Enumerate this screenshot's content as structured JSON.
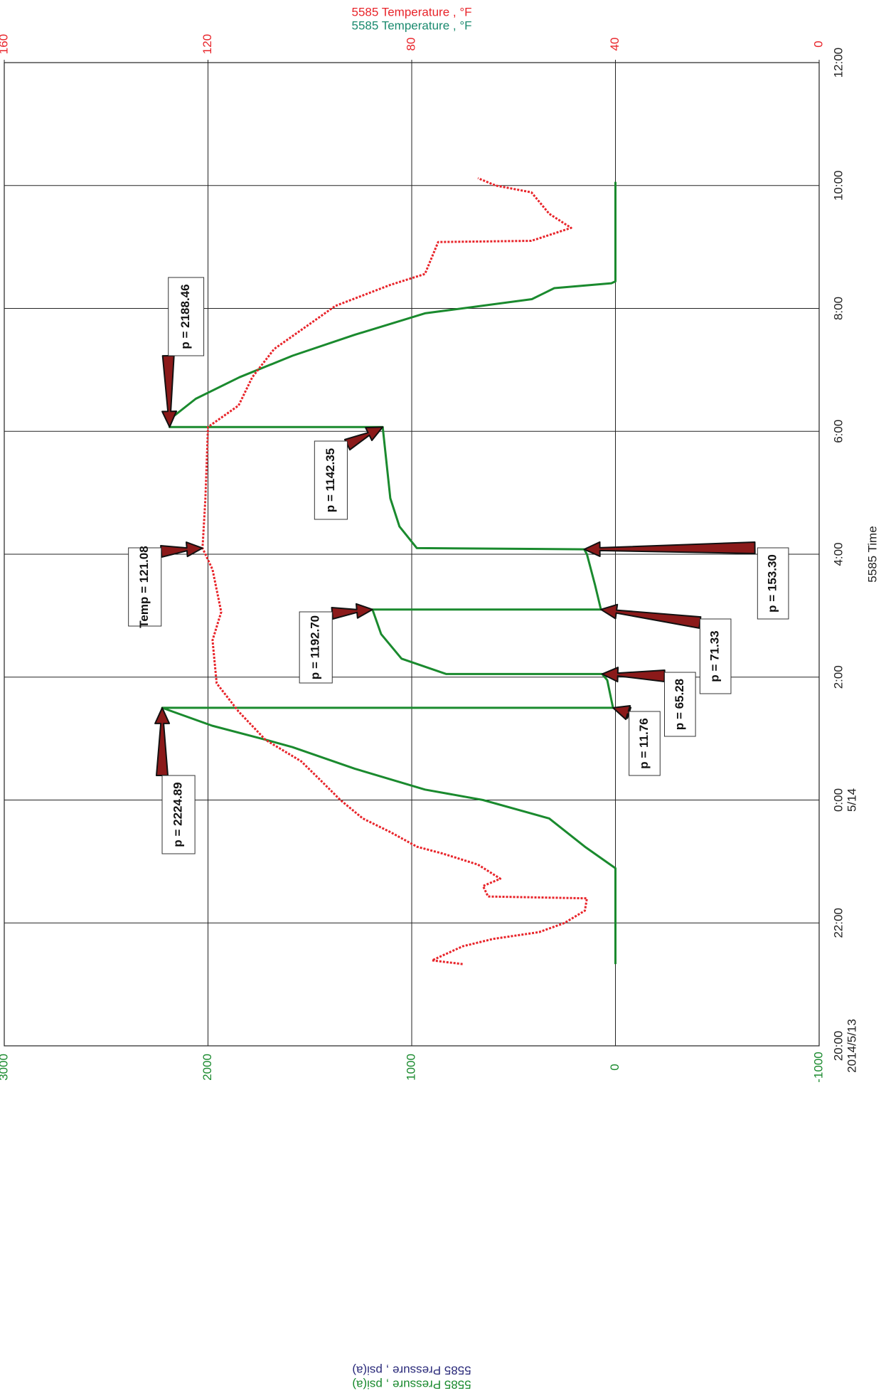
{
  "chart_data": {
    "type": "line",
    "title": "5585 Temperature , °F",
    "subtitle": "5585 Temperature , °F",
    "x_label": "5585 Time",
    "y_label": "5585 Pressure , psi(a)",
    "y_label_2": "5585 Pressure , psi(a)",
    "xlim": [
      0,
      16
    ],
    "xticks": [
      {
        "value": 0,
        "label": "20:00",
        "sublabel": "2014/5/13"
      },
      {
        "value": 2,
        "label": "22:00"
      },
      {
        "value": 4,
        "label": "0:00",
        "sublabel": "5/14"
      },
      {
        "value": 6,
        "label": "2:00"
      },
      {
        "value": 8,
        "label": "4:00"
      },
      {
        "value": 10,
        "label": "6:00"
      },
      {
        "value": 12,
        "label": "8:00"
      },
      {
        "value": 14,
        "label": "10:00"
      },
      {
        "value": 16,
        "label": "12:00"
      }
    ],
    "ylim": [
      -1000,
      3000
    ],
    "yticks": [
      -1000,
      0,
      1000,
      2000,
      3000
    ],
    "y2lim": [
      0,
      160
    ],
    "y2ticks": [
      0,
      40,
      80,
      120,
      160
    ],
    "grid": true,
    "series": [
      {
        "name": "5585 Pressure",
        "color": "#1a8a2e",
        "axis": "y",
        "x": [
          1.33,
          2.89,
          3.24,
          3.7,
          4.0,
          4.17,
          4.51,
          4.86,
          4.98,
          5.21,
          5.5,
          5.5,
          5.95,
          6.05,
          6.05,
          6.3,
          6.7,
          7.1,
          7.1,
          7.5,
          8.0,
          8.08,
          8.1,
          8.45,
          8.91,
          10.07,
          10.07,
          10.19,
          10.53,
          10.88,
          11.23,
          11.57,
          11.92,
          12.15,
          12.33,
          12.41,
          12.44,
          14.06
        ],
        "values": [
          0,
          0,
          150,
          325,
          650,
          935,
          1280,
          1585,
          1715,
          1980,
          2224.89,
          11.76,
          40,
          65.28,
          830,
          1050,
          1150,
          1192.7,
          71.33,
          100,
          140,
          153.3,
          975,
          1060,
          1105,
          1142.35,
          2188.46,
          2190,
          2060,
          1845,
          1585,
          1280,
          935,
          410,
          300,
          20,
          0,
          0
        ]
      },
      {
        "name": "5585 Temperature",
        "color": "#e8242a",
        "axis": "y2",
        "x": [
          1.33,
          1.39,
          1.62,
          1.74,
          1.85,
          2.0,
          2.2,
          2.4,
          2.43,
          2.6,
          2.72,
          2.95,
          3.13,
          3.24,
          3.47,
          3.7,
          4.0,
          4.28,
          4.63,
          4.98,
          5.44,
          5.9,
          6.6,
          7.06,
          7.75,
          8.1,
          8.91,
          10.07,
          10.42,
          10.88,
          11.34,
          11.69,
          12.04,
          12.38,
          12.56,
          13.08,
          13.1,
          13.31,
          13.54,
          13.89,
          14.0,
          14.12
        ],
        "values": [
          70,
          76,
          70,
          64,
          55,
          50,
          46,
          45.6,
          65,
          66,
          62.6,
          67,
          74,
          79,
          84,
          89.6,
          94,
          97.4,
          101.7,
          108.7,
          114,
          118.3,
          119.1,
          117.4,
          119.1,
          121.08,
          120.5,
          120,
          114,
          111.3,
          107,
          101,
          95,
          84.3,
          77.4,
          74.8,
          56.5,
          48.7,
          53,
          56.5,
          63.5,
          67
        ]
      }
    ],
    "annotations": [
      {
        "text": "p = 2188.46",
        "x": 10.07,
        "y": 2188.46,
        "axis": "y"
      },
      {
        "text": "p = 1142.35",
        "x": 10.07,
        "y": 1142.35,
        "axis": "y"
      },
      {
        "text": "Temp = 121.08",
        "x": 8.1,
        "y": 121.08,
        "axis": "y2"
      },
      {
        "text": "p = 153.30",
        "x": 8.08,
        "y": 153.3,
        "axis": "y"
      },
      {
        "text": "p = 1192.70",
        "x": 7.1,
        "y": 1192.7,
        "axis": "y"
      },
      {
        "text": "p = 71.33",
        "x": 7.1,
        "y": 71.33,
        "axis": "y"
      },
      {
        "text": "p = 65.28",
        "x": 6.05,
        "y": 65.28,
        "axis": "y"
      },
      {
        "text": "p = 11.76",
        "x": 5.5,
        "y": 11.76,
        "axis": "y"
      },
      {
        "text": "p = 2224.89",
        "x": 5.5,
        "y": 2224.89,
        "axis": "y"
      }
    ]
  }
}
